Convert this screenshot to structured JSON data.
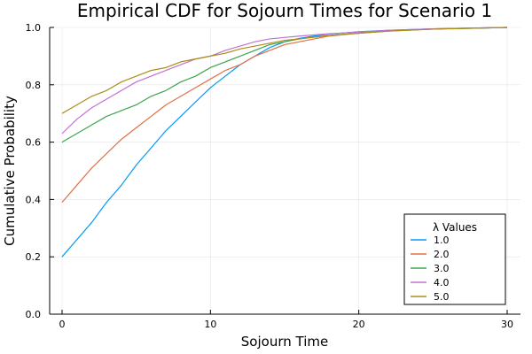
{
  "chart_data": {
    "type": "line",
    "title": "Empirical CDF for Sojourn Times for Scenario 1",
    "xlabel": "Sojourn Time",
    "ylabel": "Cumulative Probability",
    "xlim": [
      0,
      30
    ],
    "ylim": [
      0,
      1
    ],
    "xticks": [
      0,
      10,
      20,
      30
    ],
    "yticks": [
      0.0,
      0.2,
      0.4,
      0.6,
      0.8,
      1.0
    ],
    "x_tick_labels": [
      "0",
      "10",
      "20",
      "30"
    ],
    "y_tick_labels": [
      "0.0",
      "0.2",
      "0.4",
      "0.6",
      "0.8",
      "1.0"
    ],
    "grid": true,
    "legend": {
      "title": "λ Values",
      "position": "bottom-right"
    },
    "series": [
      {
        "name": "1.0",
        "color": "#009af9",
        "x": [
          0,
          1,
          2,
          3,
          4,
          5,
          6,
          7,
          8,
          9,
          10,
          11,
          12,
          13,
          14,
          15,
          16,
          17,
          18,
          20,
          22,
          25,
          30
        ],
        "y": [
          0.2,
          0.26,
          0.32,
          0.39,
          0.45,
          0.52,
          0.58,
          0.64,
          0.69,
          0.74,
          0.79,
          0.83,
          0.87,
          0.9,
          0.93,
          0.95,
          0.962,
          0.97,
          0.977,
          0.985,
          0.99,
          0.995,
          1.0
        ]
      },
      {
        "name": "2.0",
        "color": "#e26f46",
        "x": [
          0,
          1,
          2,
          3,
          4,
          5,
          6,
          7,
          8,
          9,
          10,
          11,
          12,
          13,
          14,
          15,
          16,
          18,
          20,
          22,
          25,
          30
        ],
        "y": [
          0.39,
          0.45,
          0.51,
          0.56,
          0.61,
          0.65,
          0.69,
          0.73,
          0.76,
          0.79,
          0.82,
          0.85,
          0.87,
          0.9,
          0.92,
          0.94,
          0.95,
          0.97,
          0.98,
          0.988,
          0.995,
          1.0
        ]
      },
      {
        "name": "3.0",
        "color": "#3da44d",
        "x": [
          0,
          1,
          2,
          3,
          4,
          5,
          6,
          7,
          8,
          9,
          10,
          11,
          12,
          13,
          14,
          15,
          16,
          18,
          20,
          22,
          25,
          30
        ],
        "y": [
          0.6,
          0.63,
          0.66,
          0.69,
          0.71,
          0.73,
          0.76,
          0.78,
          0.81,
          0.83,
          0.86,
          0.88,
          0.9,
          0.92,
          0.94,
          0.95,
          0.96,
          0.972,
          0.98,
          0.987,
          0.994,
          1.0
        ]
      },
      {
        "name": "4.0",
        "color": "#c271d2",
        "x": [
          0,
          1,
          2,
          3,
          4,
          5,
          6,
          7,
          8,
          9,
          10,
          11,
          12,
          13,
          14,
          15,
          16,
          18,
          20,
          22,
          25,
          30
        ],
        "y": [
          0.63,
          0.68,
          0.72,
          0.75,
          0.78,
          0.81,
          0.83,
          0.85,
          0.87,
          0.89,
          0.9,
          0.92,
          0.935,
          0.95,
          0.96,
          0.965,
          0.97,
          0.978,
          0.984,
          0.99,
          0.995,
          1.0
        ]
      },
      {
        "name": "5.0",
        "color": "#ac8d18",
        "x": [
          0,
          1,
          2,
          3,
          4,
          5,
          6,
          7,
          8,
          9,
          10,
          11,
          12,
          13,
          14,
          15,
          16,
          18,
          20,
          22,
          25,
          30
        ],
        "y": [
          0.7,
          0.73,
          0.76,
          0.78,
          0.81,
          0.83,
          0.85,
          0.86,
          0.88,
          0.89,
          0.9,
          0.91,
          0.925,
          0.935,
          0.945,
          0.955,
          0.96,
          0.972,
          0.98,
          0.987,
          0.994,
          1.0
        ]
      }
    ]
  }
}
